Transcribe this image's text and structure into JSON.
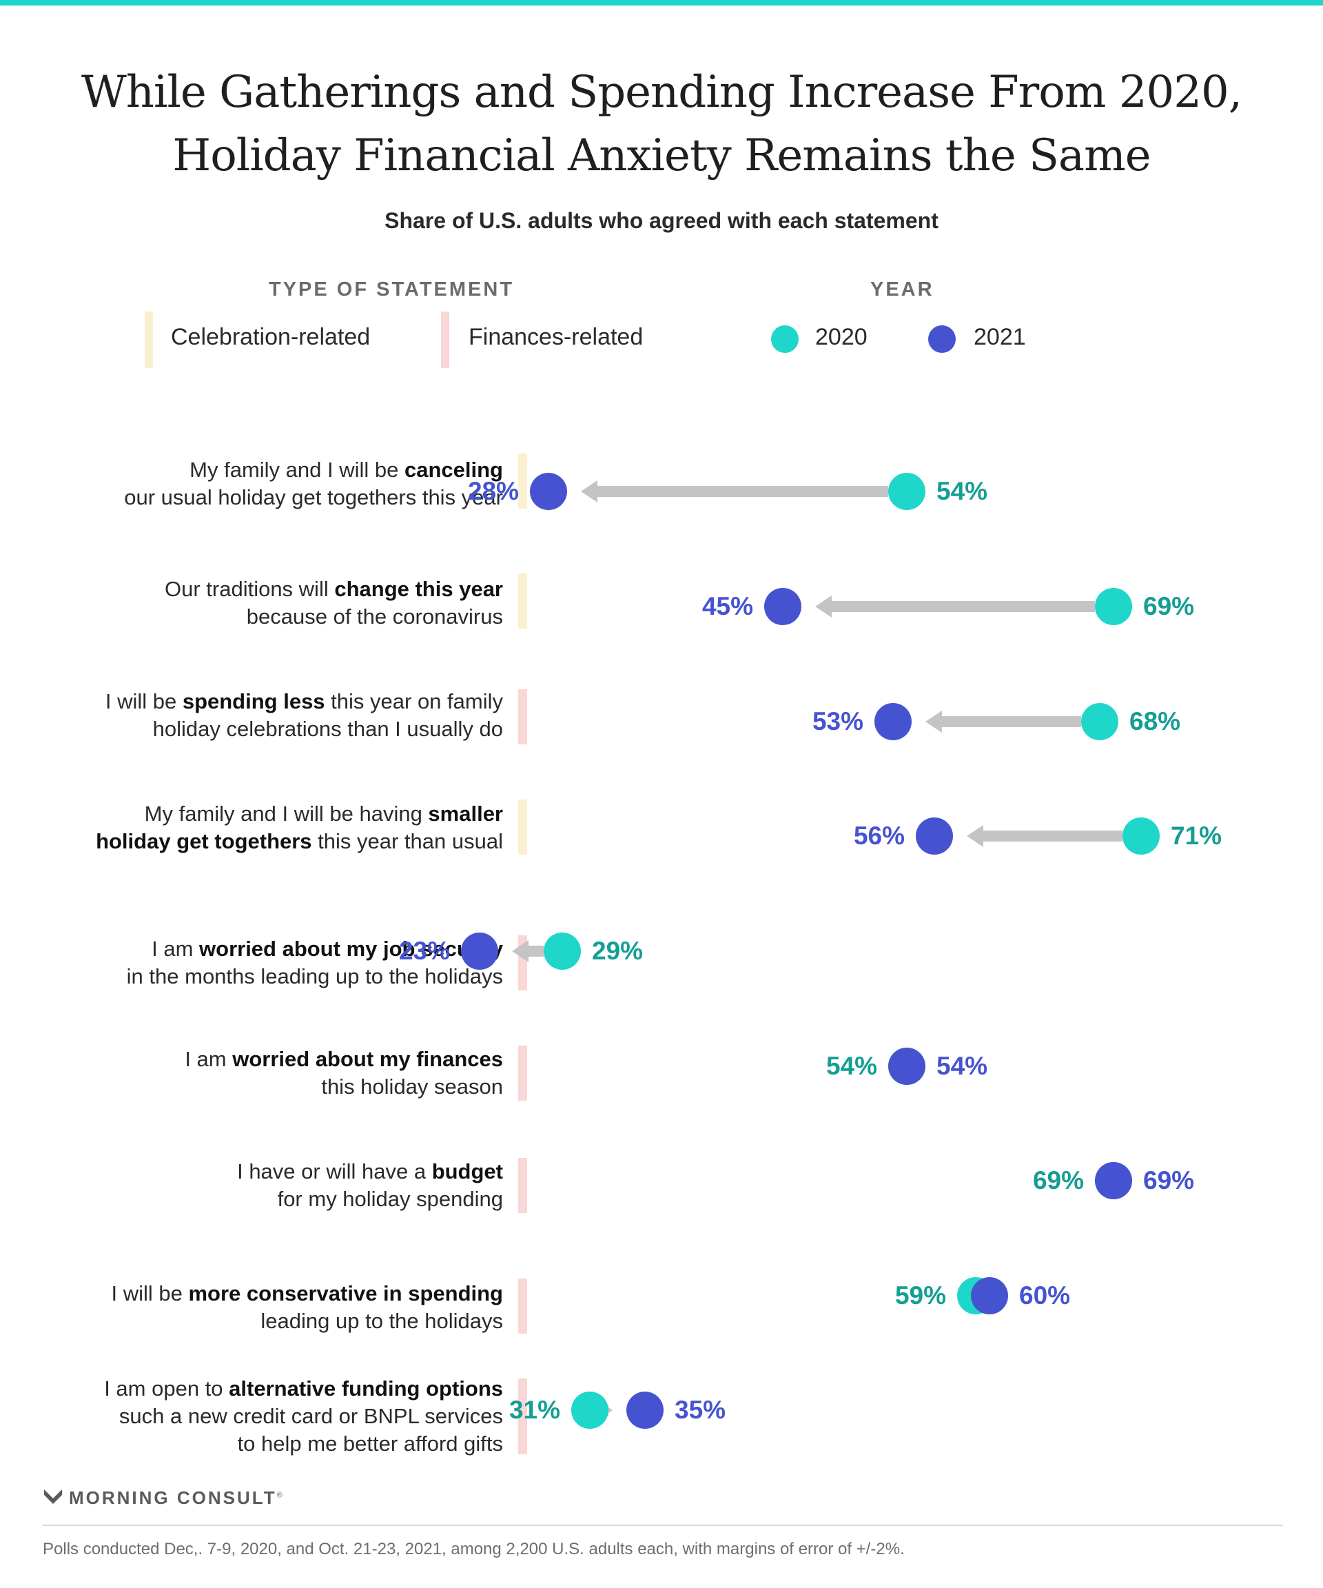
{
  "title_line1": "While Gatherings and Spending Increase From 2020,",
  "title_line2": "Holiday Financial Anxiety Remains the Same",
  "subtitle": "Share of U.S. adults who agreed with each statement",
  "legend": {
    "type_heading": "TYPE OF STATEMENT",
    "year_heading": "YEAR",
    "celebration_label": "Celebration-related",
    "finances_label": "Finances-related",
    "year_2020_label": "2020",
    "year_2021_label": "2021"
  },
  "colors": {
    "accent_top_bar": "#1ed6c9",
    "year_2020": "#1ed6c9",
    "year_2021": "#4653d1",
    "label_2020": "#149e94",
    "label_2021": "#4653d1",
    "arrow": "#c4c4c4",
    "celebration": "#faefcf",
    "finances": "#fad7d7"
  },
  "rows": [
    {
      "pre": "My family and I will be ",
      "bold": "canceling",
      "post": "",
      "line2": "our usual holiday get togethers this year",
      "line3": ""
    },
    {
      "pre": "Our traditions will ",
      "bold": "change this year",
      "post": "",
      "line2": "because of the coronavirus",
      "line3": ""
    },
    {
      "pre": "I will be ",
      "bold": "spending less",
      "post": " this year on family",
      "line2": "holiday celebrations than I usually do",
      "line3": ""
    },
    {
      "pre": "My family and I will be having ",
      "bold": "smaller",
      "post": "",
      "line2_bold": "holiday get togethers",
      "line2": " this year than usual",
      "line3": ""
    },
    {
      "pre": "I am ",
      "bold": "worried about my job security",
      "post": "",
      "line2": "in the months leading up to the holidays",
      "line3": ""
    },
    {
      "pre": "I am ",
      "bold": "worried about my finances",
      "post": "",
      "line2": "this holiday season",
      "line3": ""
    },
    {
      "pre": "I have or will have a ",
      "bold": "budget",
      "post": "",
      "line2": "for my holiday spending",
      "line3": ""
    },
    {
      "pre": "I will be ",
      "bold": "more conservative in spending",
      "post": "",
      "line2": "leading up to the holidays",
      "line3": ""
    },
    {
      "pre": "I am open to ",
      "bold": "alternative funding options",
      "post": "",
      "line2": "such a new credit card or BNPL services",
      "line3": "to help me better afford gifts"
    }
  ],
  "chart_data": {
    "type": "dumbbell",
    "title": "While Gatherings and Spending Increase From 2020, Holiday Financial Anxiety Remains the Same",
    "subtitle": "Share of U.S. adults who agreed with each statement",
    "unit": "%",
    "series": [
      {
        "name": "2020"
      },
      {
        "name": "2021"
      }
    ],
    "categories": [
      "My family and I will be canceling our usual holiday get togethers this year",
      "Our traditions will change this year because of the coronavirus",
      "I will be spending less this year on family holiday celebrations than I usually do",
      "My family and I will be having smaller holiday get togethers this year than usual",
      "I am worried about my job security in the months leading up to the holidays",
      "I am worried about my finances this holiday season",
      "I have or will have a budget for my holiday spending",
      "I will be more conservative in spending leading up to the holidays",
      "I am open to alternative funding options such a new credit card or BNPL services to help me better afford gifts"
    ],
    "statement_types": [
      "Celebration-related",
      "Celebration-related",
      "Finances-related",
      "Celebration-related",
      "Finances-related",
      "Finances-related",
      "Finances-related",
      "Finances-related",
      "Finances-related"
    ],
    "values_2020": [
      54,
      69,
      68,
      71,
      29,
      54,
      69,
      59,
      31
    ],
    "values_2021": [
      28,
      45,
      53,
      56,
      23,
      54,
      69,
      60,
      35
    ],
    "labels_2020": [
      "54%",
      "69%",
      "68%",
      "71%",
      "29%",
      "54%",
      "69%",
      "59%",
      "31%"
    ],
    "labels_2021": [
      "28%",
      "45%",
      "53%",
      "56%",
      "23%",
      "54%",
      "69%",
      "60%",
      "35%"
    ]
  },
  "logo_text": "MORNING CONSULT",
  "logo_mark": "®",
  "footnote": "Polls conducted Dec,. 7-9, 2020, and Oct. 21-23, 2021, among 2,200 U.S. adults each, with margins of error of +/-2%."
}
